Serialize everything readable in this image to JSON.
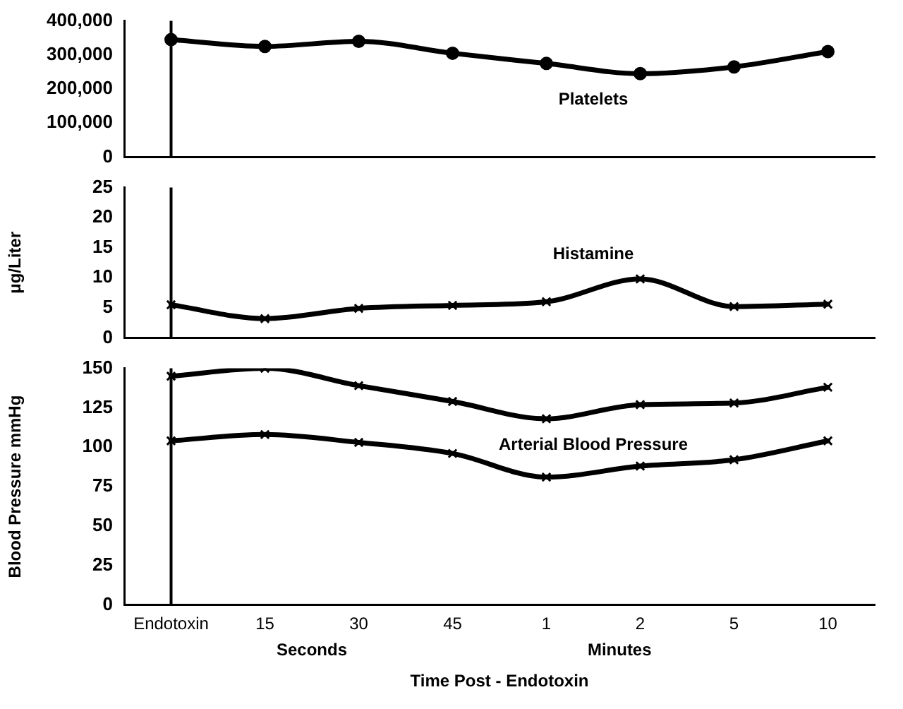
{
  "chart_data": [
    {
      "type": "line",
      "categories": [
        "Endotoxin",
        "15",
        "30",
        "45",
        "1",
        "2",
        "5",
        "10"
      ],
      "ylim": [
        0,
        400000
      ],
      "yticks": [
        0,
        {
          "value": 100000,
          "label": "100,000"
        },
        {
          "value": 200000,
          "label": "200,000"
        },
        {
          "value": 300000,
          "label": "300,000"
        },
        {
          "value": 400000,
          "label": "400,000"
        }
      ],
      "grid": false,
      "legend": false,
      "marker": "circle",
      "line_style": "solid",
      "tick_labels": "y",
      "ref_lines": [
        {
          "axis": "x",
          "value": "Endotoxin",
          "color": "#000000"
        }
      ],
      "series": [
        {
          "name": "Platelets",
          "color": "#000000",
          "values": [
            345000,
            325000,
            340000,
            305000,
            275000,
            245000,
            265000,
            310000
          ]
        }
      ]
    },
    {
      "type": "line",
      "categories": [
        "Endotoxin",
        "15",
        "30",
        "45",
        "1",
        "2",
        "5",
        "10"
      ],
      "ylabel": "μg/Liter",
      "ylim": [
        0,
        25
      ],
      "yticks": [
        0,
        5,
        10,
        15,
        20,
        25
      ],
      "grid": false,
      "legend": false,
      "marker": "cross",
      "line_style": "solid",
      "tick_labels": "y",
      "ref_lines": [
        {
          "axis": "x",
          "value": "Endotoxin",
          "color": "#000000"
        }
      ],
      "series": [
        {
          "name": "Histamine",
          "color": "#000000",
          "values": [
            5.5,
            3.2,
            4.9,
            5.4,
            6.0,
            9.8,
            5.2,
            5.6
          ]
        }
      ]
    },
    {
      "type": "line",
      "categories": [
        "Endotoxin",
        "15",
        "30",
        "45",
        "1",
        "2",
        "5",
        "10"
      ],
      "xlabel": "Time Post - Endotoxin",
      "ylabel": "Blood Pressure mmHg",
      "ylim": [
        0,
        150
      ],
      "yticks": [
        0,
        25,
        50,
        75,
        100,
        125,
        150
      ],
      "grid": false,
      "legend": false,
      "marker": "cross",
      "line_style": "solid",
      "ref_lines": [
        {
          "axis": "x",
          "value": "Endotoxin",
          "color": "#000000"
        }
      ],
      "annotations": [
        "Seconds",
        "Minutes"
      ],
      "series": [
        {
          "name": "Arterial Blood Pressure",
          "color": "#000000",
          "values": [
            145,
            150,
            139,
            129,
            118,
            127,
            128,
            138
          ]
        },
        {
          "color": "#000000",
          "values": [
            104,
            108,
            103,
            96,
            81,
            88,
            92,
            104
          ]
        }
      ]
    }
  ]
}
